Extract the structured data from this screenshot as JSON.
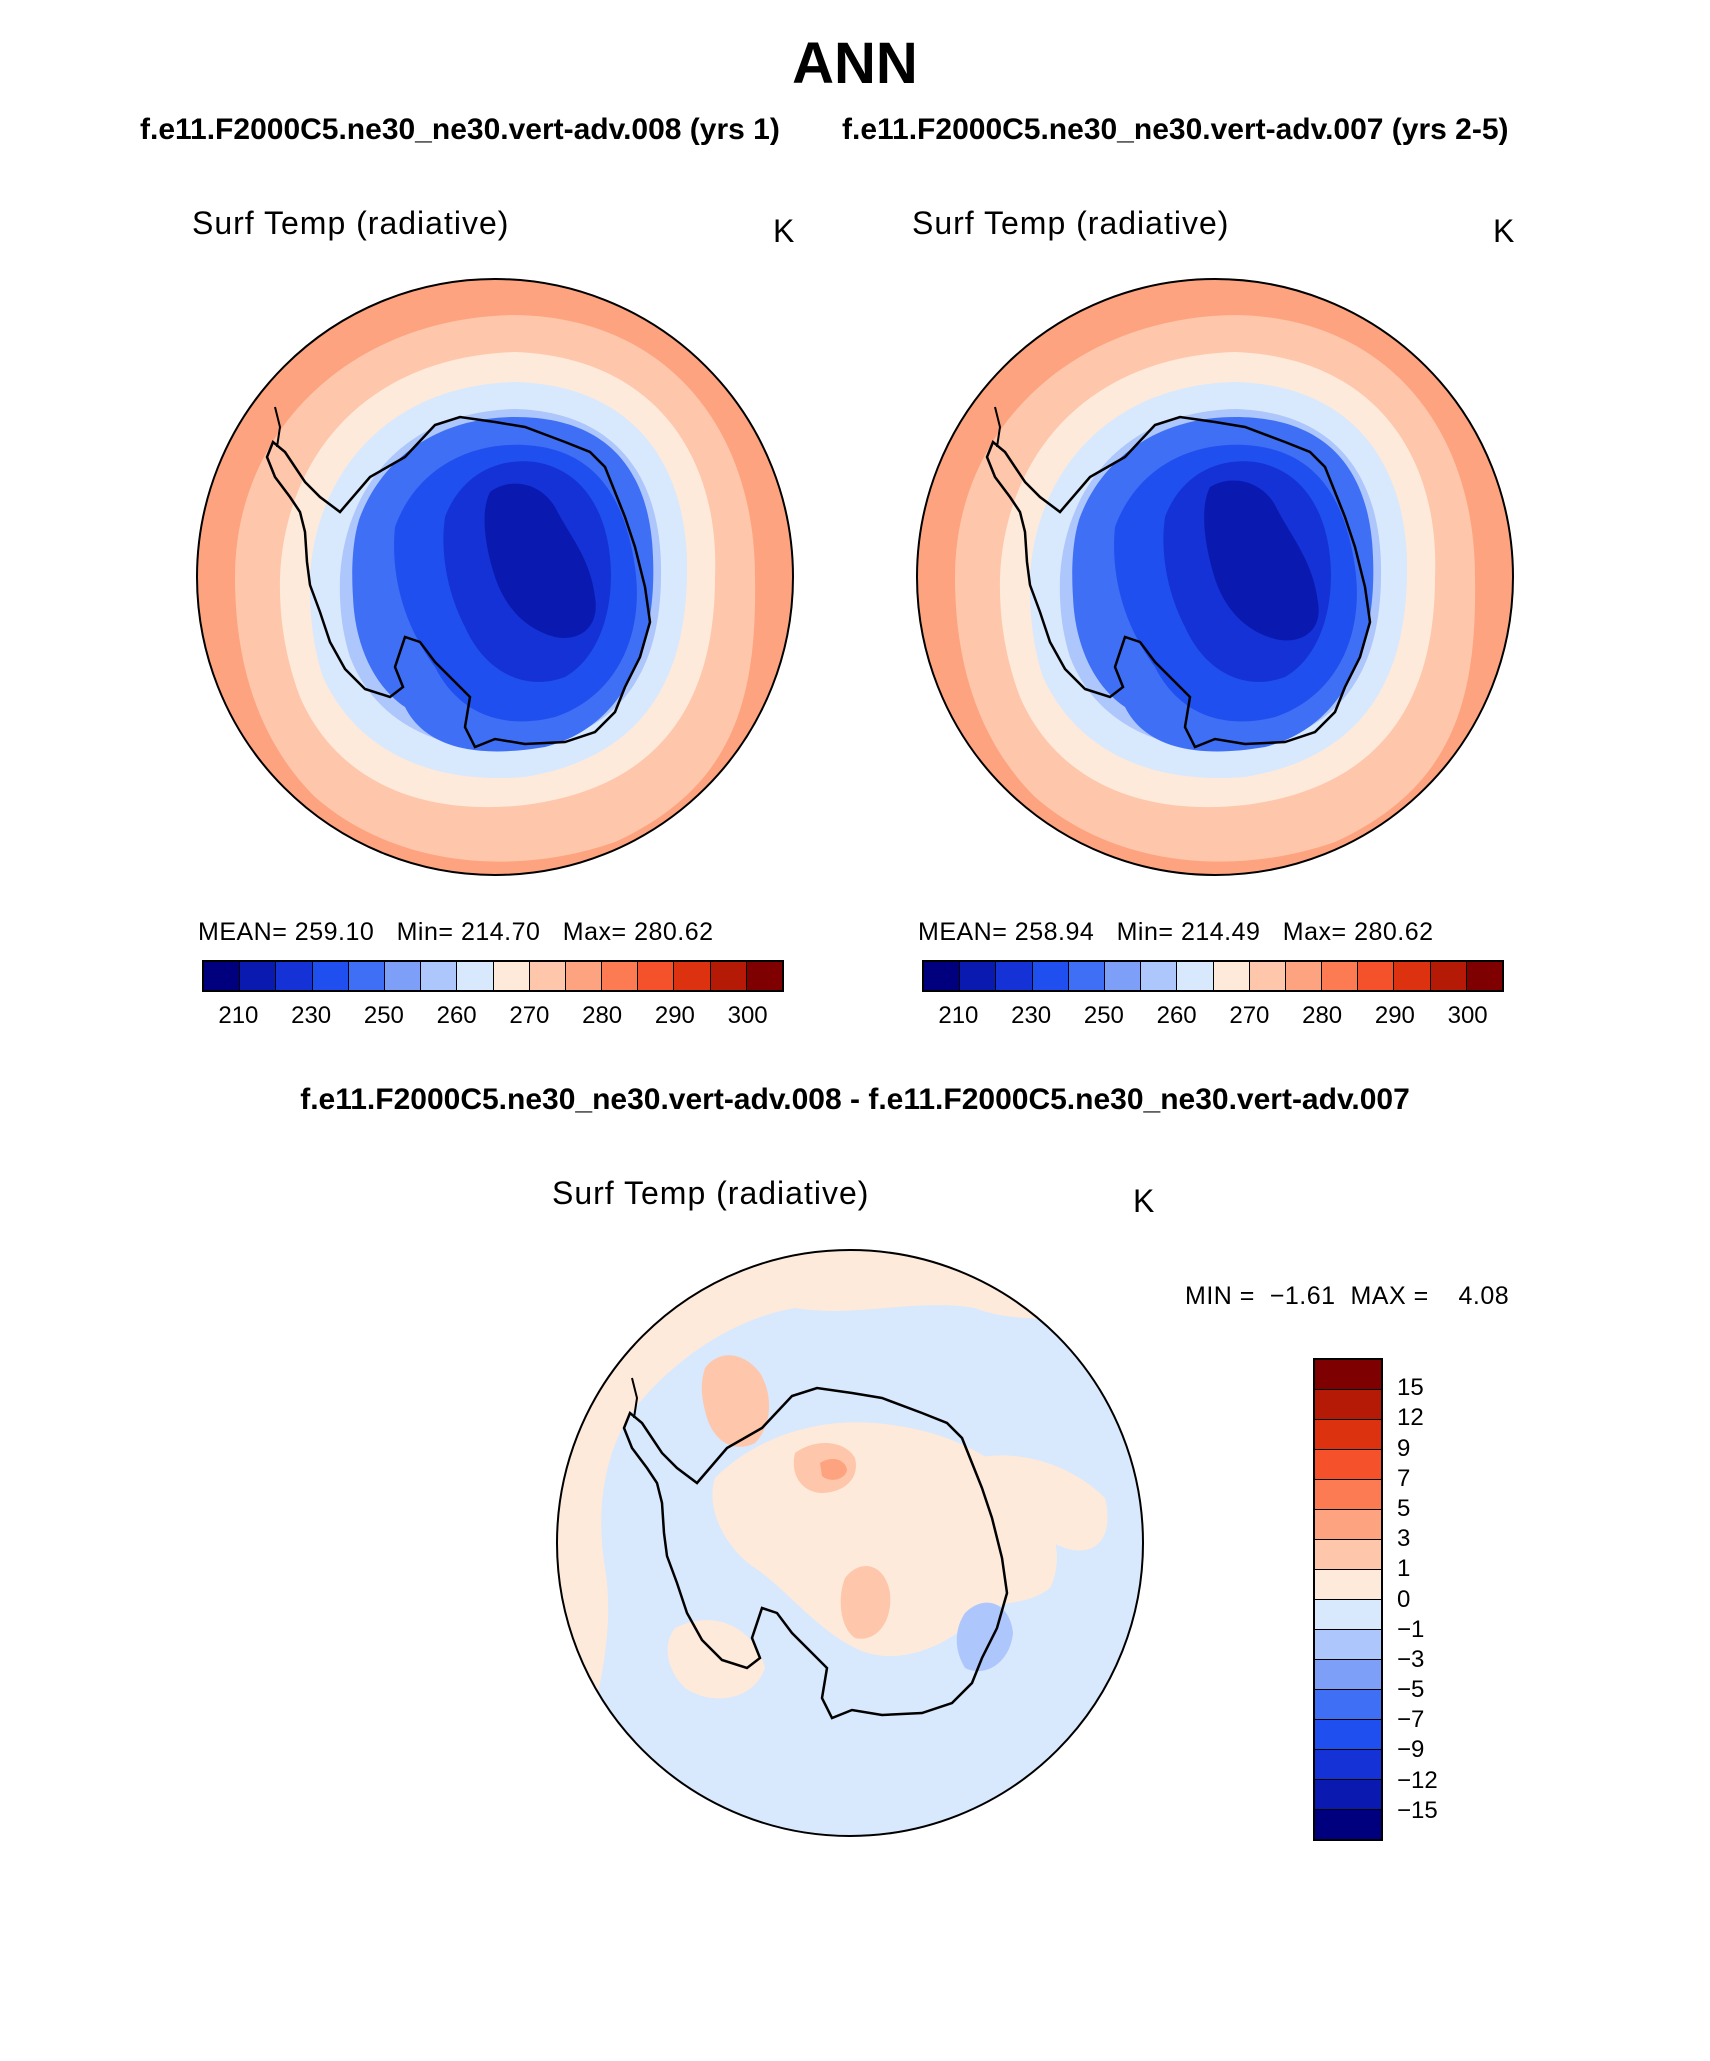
{
  "figure": {
    "title": "ANN",
    "subtitle_left": "f.e11.F2000C5.ne30_ne30.vert-adv.008 (yrs 1)",
    "subtitle_right": "f.e11.F2000C5.ne30_ne30.vert-adv.007 (yrs 2-5)",
    "diff_title": "f.e11.F2000C5.ne30_ne30.vert-adv.008 - f.e11.F2000C5.ne30_ne30.vert-adv.007"
  },
  "panels": [
    {
      "variable": "Surf Temp (radiative)",
      "units": "K",
      "stats": {
        "mean_label": "MEAN=",
        "mean": "259.10",
        "min_label": "Min=",
        "min": "214.70",
        "max_label": "Max=",
        "max": "280.62"
      }
    },
    {
      "variable": "Surf Temp (radiative)",
      "units": "K",
      "stats": {
        "mean_label": "MEAN=",
        "mean": "258.94",
        "min_label": "Min=",
        "min": "214.49",
        "max_label": "Max=",
        "max": "280.62"
      }
    }
  ],
  "diff_panel": {
    "variable": "Surf Temp (radiative)",
    "units": "K",
    "stats": {
      "min_label": "MIN =",
      "min": "−1.61",
      "max_label": "MAX =",
      "max": "4.08"
    }
  },
  "abs_colorbar": {
    "colors": [
      "#00007f",
      "#0a1ab0",
      "#1432d6",
      "#1f4fef",
      "#3e6ff5",
      "#7e9ff8",
      "#adc6fb",
      "#d8e8fd",
      "#feeadb",
      "#fec7ab",
      "#fda37f",
      "#fc7b52",
      "#f5512a",
      "#dd3210",
      "#b41a05",
      "#7f0000"
    ],
    "tick_labels": [
      "210",
      "230",
      "250",
      "260",
      "270",
      "280",
      "290",
      "300"
    ]
  },
  "diff_colorbar": {
    "colors": [
      "#7f0000",
      "#b41a05",
      "#dd3210",
      "#f5512a",
      "#fc7b52",
      "#fda37f",
      "#fec7ab",
      "#feeadb",
      "#d8e8fd",
      "#adc6fb",
      "#7e9ff8",
      "#3e6ff5",
      "#1f4fef",
      "#1432d6",
      "#0a1ab0",
      "#00007f"
    ],
    "tick_labels": [
      "15",
      "12",
      "9",
      "7",
      "5",
      "3",
      "1",
      "0",
      "−1",
      "−3",
      "−5",
      "−7",
      "−9",
      "−12",
      "−15"
    ]
  }
}
